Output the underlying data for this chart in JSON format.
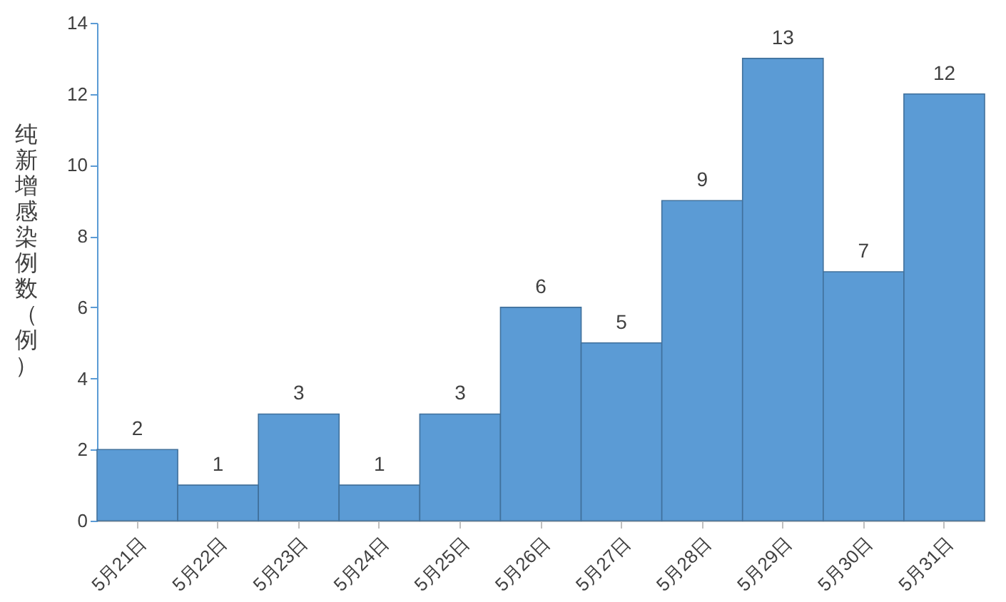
{
  "chart_data": {
    "type": "bar",
    "ylabel": "纯新增感染例数（例）",
    "categories": [
      "5月21日",
      "5月22日",
      "5月23日",
      "5月24日",
      "5月25日",
      "5月26日",
      "5月27日",
      "5月28日",
      "5月29日",
      "5月30日",
      "5月31日"
    ],
    "values": [
      2,
      1,
      3,
      1,
      3,
      6,
      5,
      9,
      13,
      7,
      12
    ],
    "color": "#5b9bd5",
    "ylim": [
      0,
      14
    ],
    "yticks": [
      0,
      2,
      4,
      6,
      8,
      10,
      12,
      14
    ],
    "grid": false,
    "data_labels": true
  }
}
